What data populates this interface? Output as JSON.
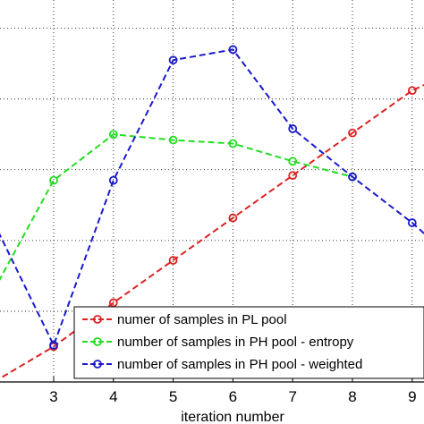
{
  "chart_data": {
    "type": "line",
    "xlabel": "iteration number",
    "ylabel": "",
    "title": "",
    "x_ticks": [
      3,
      4,
      5,
      6,
      7,
      8,
      9
    ],
    "xlim": [
      2,
      9.2
    ],
    "ylim": [
      0,
      540
    ],
    "y_gridlines": [
      0,
      100,
      200,
      300,
      400,
      500
    ],
    "grid": true,
    "legend_position": "bottom-right",
    "series": [
      {
        "name": "numer of samples in PL pool",
        "color": "#dd2222",
        "dash": "dashed",
        "marker": "circle",
        "x": [
          2,
          3,
          4,
          5,
          6,
          7,
          8,
          9,
          9.2
        ],
        "y": [
          0,
          50,
          112,
          172,
          232,
          292,
          352,
          412,
          420
        ]
      },
      {
        "name": "number of samples in PH pool - entropy",
        "color": "#22dd22",
        "dash": "dashed",
        "marker": "circle",
        "x": [
          2,
          3,
          4,
          5,
          6,
          7,
          8
        ],
        "y": [
          130,
          285,
          350,
          342,
          337,
          312,
          290
        ]
      },
      {
        "name": "number of samples in PH pool - weighted",
        "color": "#1a1acc",
        "dash": "dashed",
        "marker": "circle",
        "x": [
          2,
          3,
          4,
          5,
          6,
          7,
          8,
          9,
          9.2
        ],
        "y": [
          225,
          52,
          285,
          455,
          470,
          358,
          290,
          225,
          210
        ]
      }
    ]
  }
}
